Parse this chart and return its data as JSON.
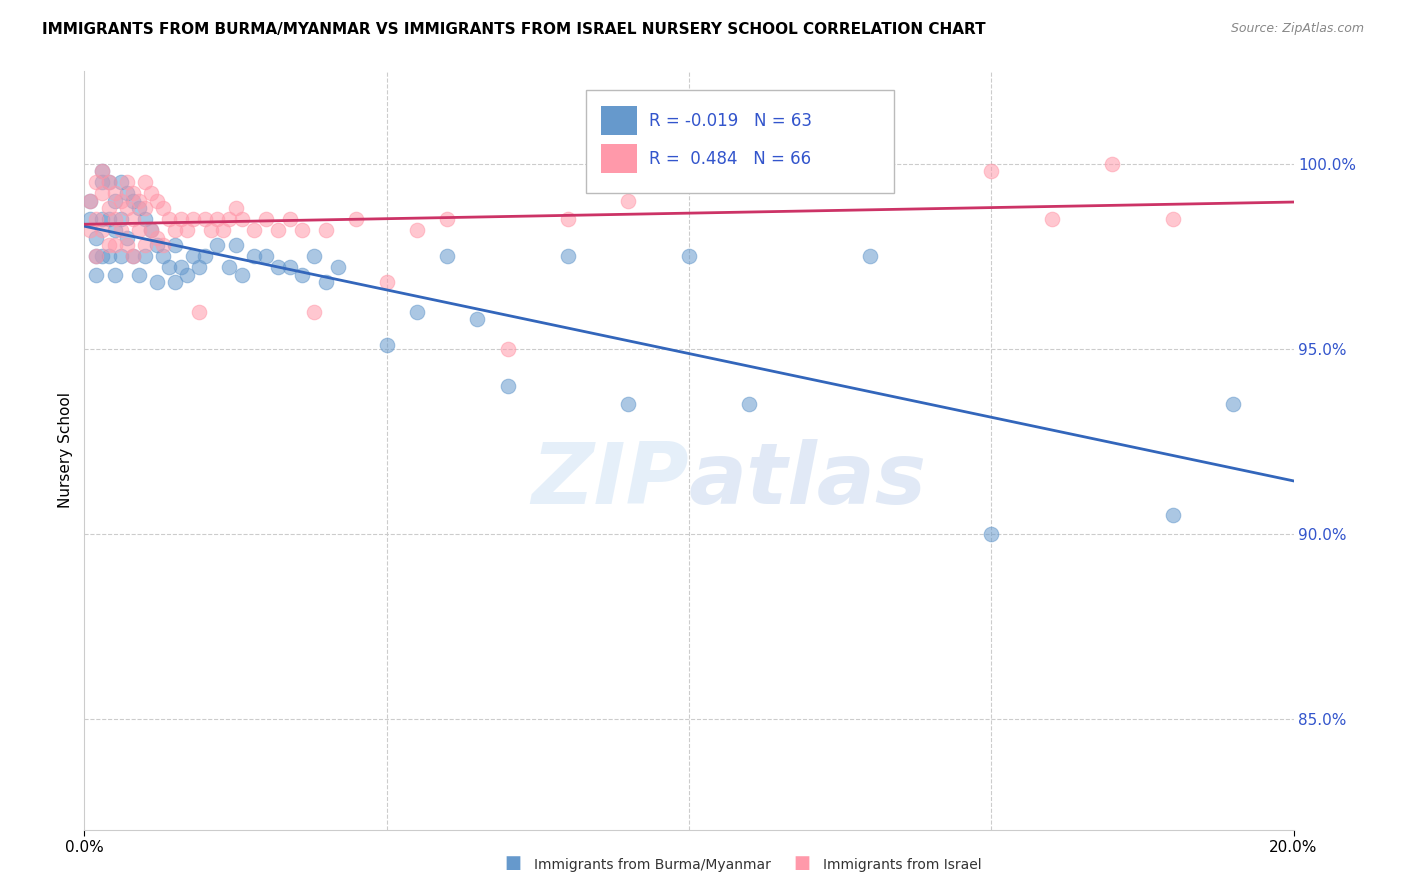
{
  "title": "IMMIGRANTS FROM BURMA/MYANMAR VS IMMIGRANTS FROM ISRAEL NURSERY SCHOOL CORRELATION CHART",
  "source": "Source: ZipAtlas.com",
  "ylabel": "Nursery School",
  "y_tick_labels": [
    "100.0%",
    "95.0%",
    "90.0%",
    "85.0%"
  ],
  "y_tick_values": [
    1.0,
    0.95,
    0.9,
    0.85
  ],
  "xlim": [
    0.0,
    0.2
  ],
  "ylim": [
    0.82,
    1.025
  ],
  "legend_blue_label": "Immigrants from Burma/Myanmar",
  "legend_pink_label": "Immigrants from Israel",
  "r_blue": "-0.019",
  "n_blue": "63",
  "r_pink": "0.484",
  "n_pink": "66",
  "blue_color": "#6699CC",
  "pink_color": "#FF99AA",
  "blue_line_color": "#3366BB",
  "pink_line_color": "#CC3366",
  "watermark_zip": "ZIP",
  "watermark_atlas": "atlas",
  "blue_x": [
    0.001,
    0.001,
    0.002,
    0.002,
    0.002,
    0.003,
    0.003,
    0.003,
    0.003,
    0.004,
    0.004,
    0.004,
    0.005,
    0.005,
    0.005,
    0.006,
    0.006,
    0.006,
    0.007,
    0.007,
    0.008,
    0.008,
    0.009,
    0.009,
    0.01,
    0.01,
    0.011,
    0.012,
    0.012,
    0.013,
    0.014,
    0.015,
    0.015,
    0.016,
    0.017,
    0.018,
    0.019,
    0.02,
    0.022,
    0.024,
    0.025,
    0.026,
    0.028,
    0.03,
    0.032,
    0.034,
    0.036,
    0.038,
    0.04,
    0.042,
    0.05,
    0.055,
    0.06,
    0.065,
    0.07,
    0.08,
    0.09,
    0.1,
    0.11,
    0.13,
    0.15,
    0.18,
    0.19
  ],
  "blue_y": [
    0.99,
    0.985,
    0.98,
    0.975,
    0.97,
    0.998,
    0.995,
    0.985,
    0.975,
    0.995,
    0.985,
    0.975,
    0.99,
    0.982,
    0.97,
    0.995,
    0.985,
    0.975,
    0.992,
    0.98,
    0.99,
    0.975,
    0.988,
    0.97,
    0.985,
    0.975,
    0.982,
    0.978,
    0.968,
    0.975,
    0.972,
    0.978,
    0.968,
    0.972,
    0.97,
    0.975,
    0.972,
    0.975,
    0.978,
    0.972,
    0.978,
    0.97,
    0.975,
    0.975,
    0.972,
    0.972,
    0.97,
    0.975,
    0.968,
    0.972,
    0.951,
    0.96,
    0.975,
    0.958,
    0.94,
    0.975,
    0.935,
    0.975,
    0.935,
    0.975,
    0.9,
    0.905,
    0.935
  ],
  "pink_x": [
    0.001,
    0.001,
    0.002,
    0.002,
    0.002,
    0.003,
    0.003,
    0.003,
    0.004,
    0.004,
    0.004,
    0.005,
    0.005,
    0.005,
    0.006,
    0.006,
    0.007,
    0.007,
    0.007,
    0.008,
    0.008,
    0.008,
    0.009,
    0.009,
    0.01,
    0.01,
    0.01,
    0.011,
    0.011,
    0.012,
    0.012,
    0.013,
    0.013,
    0.014,
    0.015,
    0.016,
    0.017,
    0.018,
    0.019,
    0.02,
    0.021,
    0.022,
    0.023,
    0.024,
    0.025,
    0.026,
    0.028,
    0.03,
    0.032,
    0.034,
    0.036,
    0.038,
    0.04,
    0.045,
    0.05,
    0.055,
    0.06,
    0.07,
    0.08,
    0.09,
    0.1,
    0.11,
    0.15,
    0.16,
    0.17,
    0.18
  ],
  "pink_y": [
    0.99,
    0.982,
    0.995,
    0.985,
    0.975,
    0.998,
    0.992,
    0.982,
    0.995,
    0.988,
    0.978,
    0.992,
    0.985,
    0.978,
    0.99,
    0.982,
    0.995,
    0.988,
    0.978,
    0.992,
    0.985,
    0.975,
    0.99,
    0.982,
    0.995,
    0.988,
    0.978,
    0.992,
    0.982,
    0.99,
    0.98,
    0.988,
    0.978,
    0.985,
    0.982,
    0.985,
    0.982,
    0.985,
    0.96,
    0.985,
    0.982,
    0.985,
    0.982,
    0.985,
    0.988,
    0.985,
    0.982,
    0.985,
    0.982,
    0.985,
    0.982,
    0.96,
    0.982,
    0.985,
    0.968,
    0.982,
    0.985,
    0.95,
    0.985,
    0.99,
    1.0,
    0.998,
    0.998,
    0.985,
    1.0,
    0.985
  ]
}
